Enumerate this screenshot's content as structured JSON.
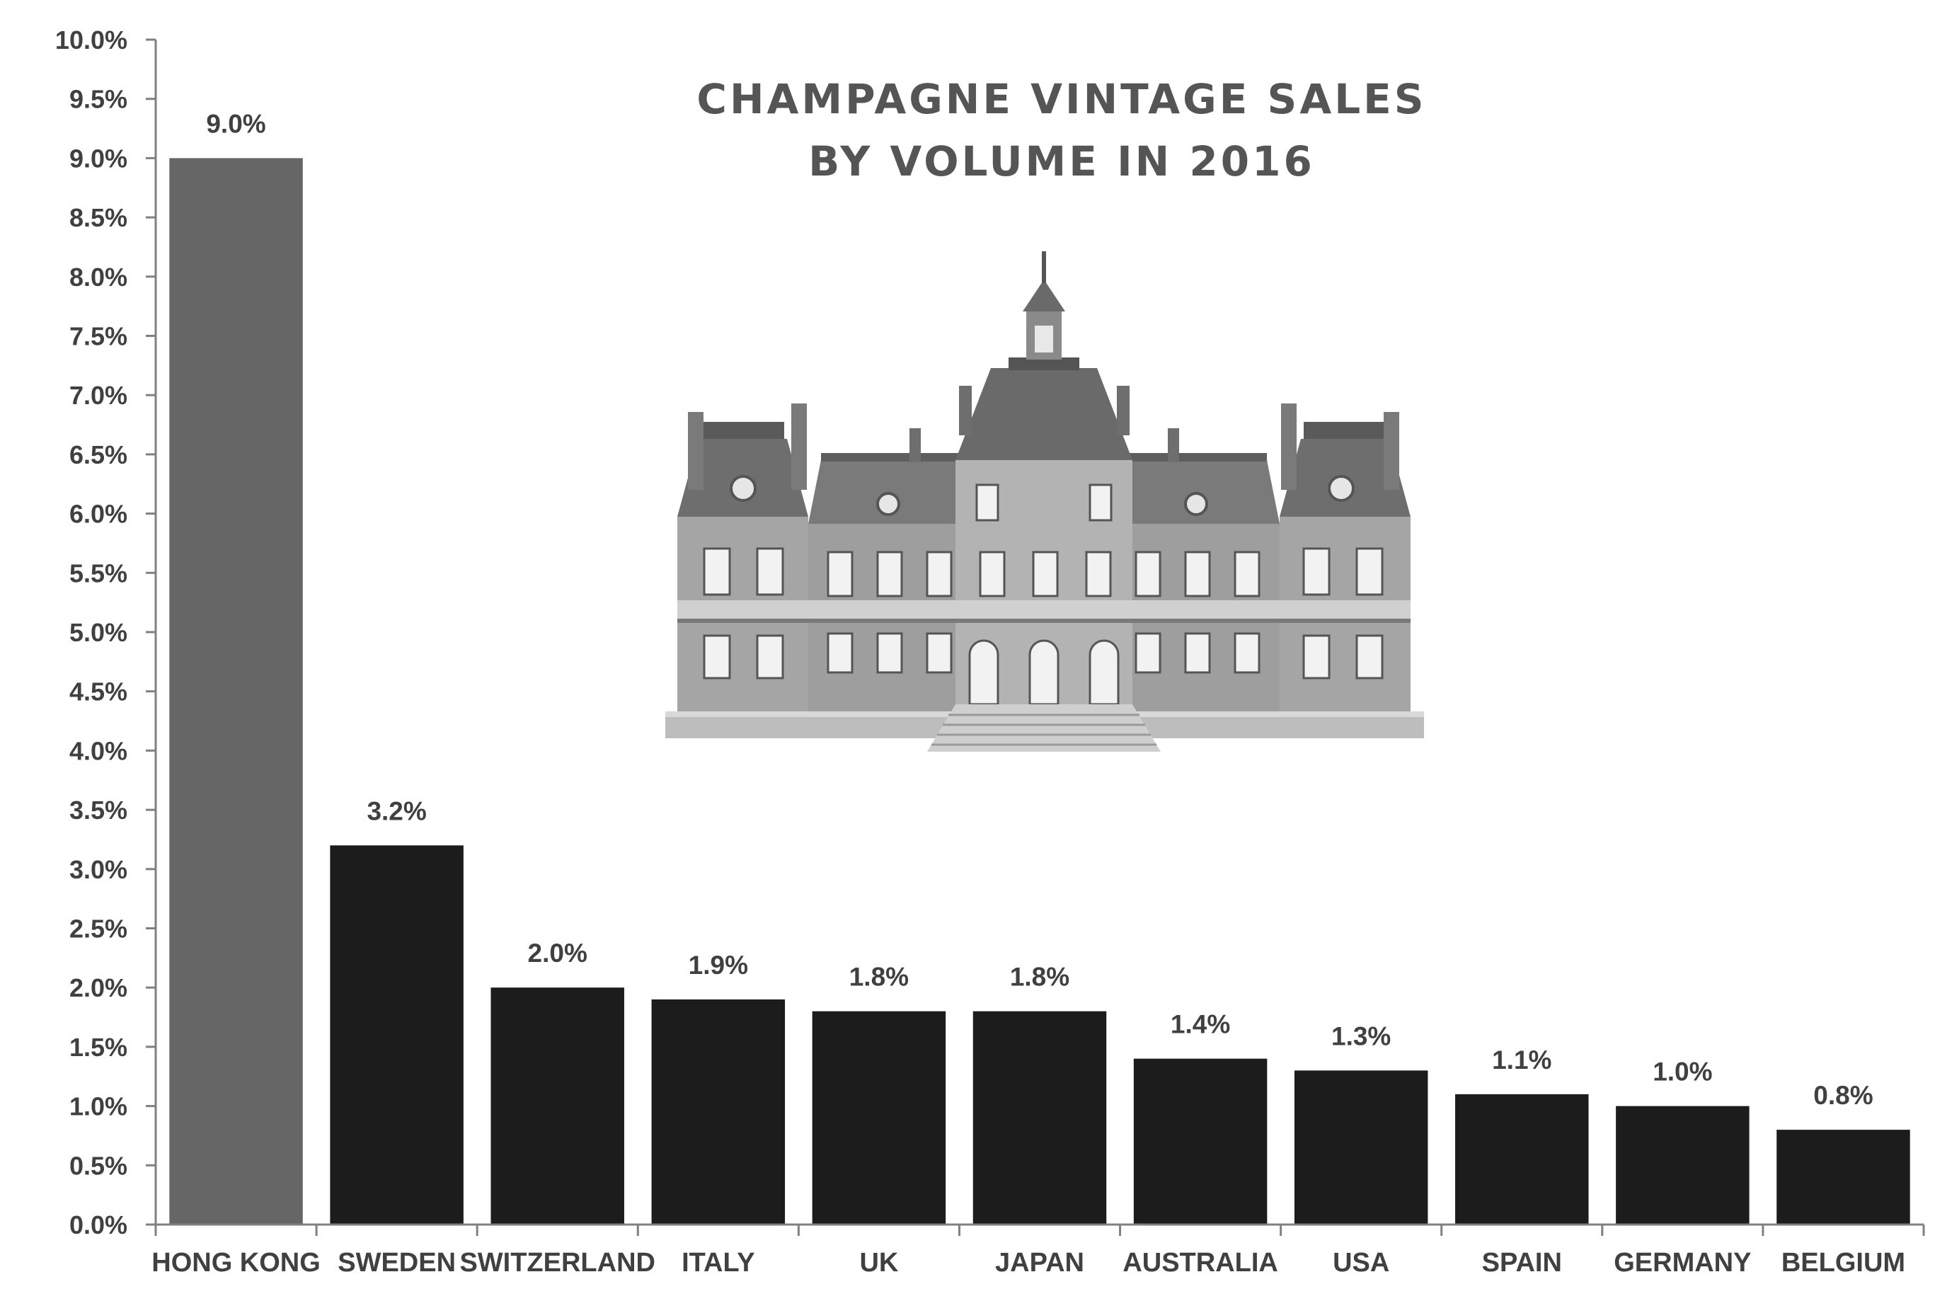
{
  "chart_data": {
    "type": "bar",
    "title_lines": [
      "CHAMPAGNE VINTAGE SALES",
      "BY VOLUME IN 2016"
    ],
    "categories": [
      "HONG KONG",
      "SWEDEN",
      "SWITZERLAND",
      "ITALY",
      "UK",
      "JAPAN",
      "AUSTRALIA",
      "USA",
      "SPAIN",
      "GERMANY",
      "BELGIUM"
    ],
    "values": [
      9.0,
      3.2,
      2.0,
      1.9,
      1.8,
      1.8,
      1.4,
      1.3,
      1.1,
      1.0,
      0.8
    ],
    "data_labels": [
      "9.0%",
      "3.2%",
      "2.0%",
      "1.9%",
      "1.8%",
      "1.8%",
      "1.4%",
      "1.3%",
      "1.1%",
      "1.0%",
      "0.8%"
    ],
    "ylim": [
      0,
      10
    ],
    "y_ticks": [
      "0.0%",
      "0.5%",
      "1.0%",
      "1.5%",
      "2.0%",
      "2.5%",
      "3.0%",
      "3.5%",
      "4.0%",
      "4.5%",
      "5.0%",
      "5.5%",
      "6.0%",
      "6.5%",
      "7.0%",
      "7.5%",
      "8.0%",
      "8.5%",
      "9.0%",
      "9.5%",
      "10.0%"
    ],
    "y_tick_values": [
      0,
      0.5,
      1,
      1.5,
      2,
      2.5,
      3,
      3.5,
      4,
      4.5,
      5,
      5.5,
      6,
      6.5,
      7,
      7.5,
      8,
      8.5,
      9,
      9.5,
      10
    ],
    "grid": false,
    "legend": "none",
    "colors": {
      "highlight": "#666666",
      "bar": "#1c1c1c",
      "axis": "#808080",
      "text": "#404040"
    }
  },
  "illustration": {
    "icon": "chateau-icon"
  }
}
